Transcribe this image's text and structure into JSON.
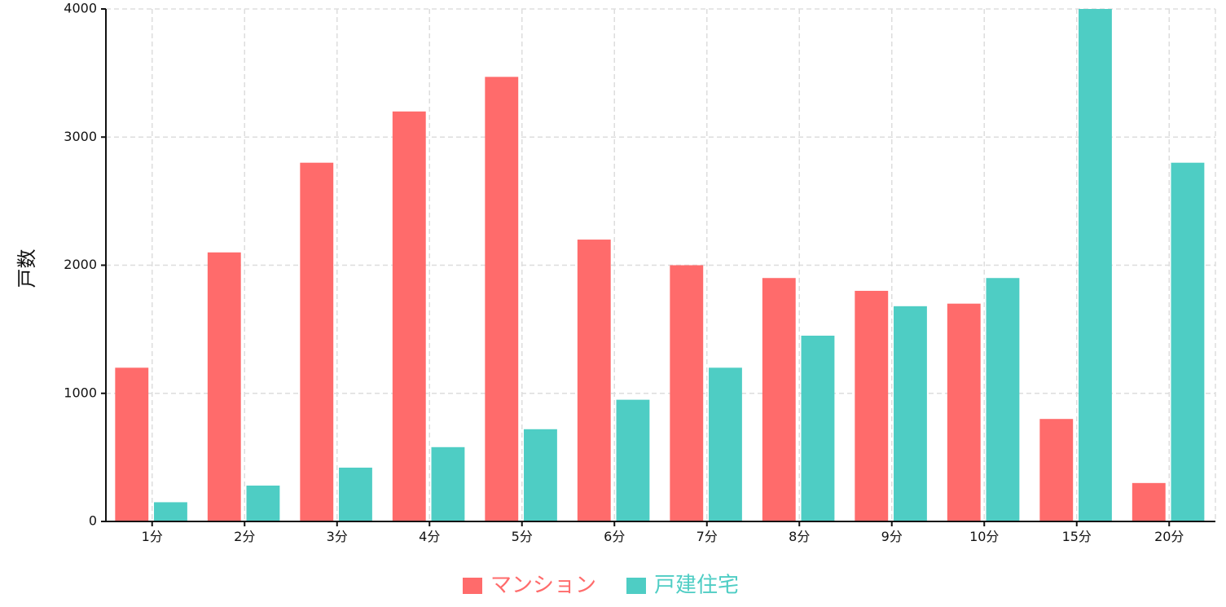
{
  "chart_data": {
    "type": "bar",
    "title": "",
    "xlabel": "",
    "ylabel": "戸数",
    "ylim": [
      0,
      4000
    ],
    "yticks": [
      0,
      1000,
      2000,
      3000,
      4000
    ],
    "grid": true,
    "legend_position": "bottom-center",
    "categories": [
      "1分",
      "2分",
      "3分",
      "4分",
      "5分",
      "6分",
      "7分",
      "8分",
      "9分",
      "10分",
      "15分",
      "20分"
    ],
    "series": [
      {
        "name": "マンション",
        "color": "#ff6b6b",
        "values": [
          1200,
          2100,
          2800,
          3200,
          3470,
          2200,
          2000,
          1900,
          1800,
          1700,
          800,
          300
        ]
      },
      {
        "name": "戸建住宅",
        "color": "#4ecdc4",
        "values": [
          150,
          280,
          420,
          580,
          720,
          950,
          1200,
          1450,
          1680,
          1900,
          4000,
          2800
        ]
      }
    ]
  }
}
